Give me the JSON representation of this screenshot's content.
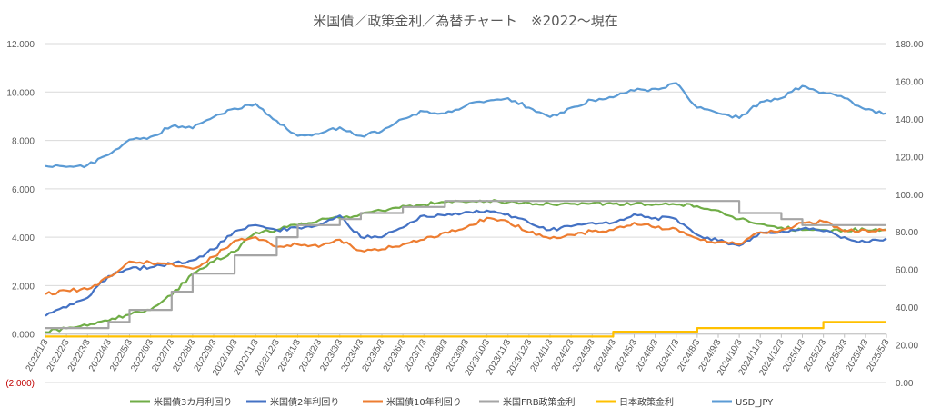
{
  "chart_data": {
    "type": "line",
    "title": "米国債／政策金利／為替チャート　※2022～現在",
    "left_axis": {
      "ylim": [
        -2,
        12
      ],
      "ticks": [
        -2,
        0,
        2,
        4,
        6,
        8,
        10,
        12
      ],
      "tick_labels": [
        "(2.000)",
        "0.000",
        "2.000",
        "4.000",
        "6.000",
        "8.000",
        "10.000",
        "12.000"
      ]
    },
    "right_axis": {
      "ylim": [
        0,
        180
      ],
      "ticks": [
        0,
        20,
        40,
        60,
        80,
        100,
        120,
        140,
        160,
        180
      ],
      "tick_labels": [
        "0.00",
        "20.00",
        "40.00",
        "60.00",
        "80.00",
        "100.00",
        "120.00",
        "140.00",
        "160.00",
        "180.00"
      ]
    },
    "grid": true,
    "legend": "bottom",
    "categories": [
      "2022/1/3",
      "2022/2/3",
      "2022/3/3",
      "2022/4/3",
      "2022/5/3",
      "2022/6/3",
      "2022/7/3",
      "2022/8/3",
      "2022/9/3",
      "2022/10/3",
      "2022/11/3",
      "2022/12/3",
      "2023/1/3",
      "2023/2/3",
      "2023/3/3",
      "2023/4/3",
      "2023/5/3",
      "2023/6/3",
      "2023/7/3",
      "2023/8/3",
      "2023/9/3",
      "2023/10/3",
      "2023/11/3",
      "2023/12/3",
      "2024/1/3",
      "2024/2/3",
      "2024/3/3",
      "2024/4/3",
      "2024/5/3",
      "2024/6/3",
      "2024/7/3",
      "2024/8/3",
      "2024/9/3",
      "2024/10/3",
      "2024/11/3",
      "2024/12/3",
      "2025/1/3",
      "2025/2/3",
      "2025/3/3",
      "2025/4/3",
      "2025/5/3"
    ],
    "series": [
      {
        "name": "米国債3カ月利回り",
        "axis": "left",
        "color": "#70ad47",
        "step": false,
        "values": [
          0.08,
          0.24,
          0.35,
          0.55,
          0.8,
          1.0,
          1.6,
          2.5,
          3.0,
          3.4,
          4.2,
          4.3,
          4.5,
          4.7,
          4.8,
          4.95,
          5.1,
          5.3,
          5.35,
          5.45,
          5.45,
          5.5,
          5.45,
          5.42,
          5.38,
          5.38,
          5.4,
          5.38,
          5.38,
          5.36,
          5.35,
          5.28,
          5.1,
          4.75,
          4.55,
          4.4,
          4.3,
          4.3,
          4.3,
          4.3,
          4.32
        ]
      },
      {
        "name": "米国債2年利回り",
        "axis": "left",
        "color": "#4472c4",
        "step": false,
        "values": [
          0.75,
          1.1,
          1.5,
          2.4,
          2.7,
          2.75,
          2.9,
          3.05,
          3.5,
          4.25,
          4.5,
          4.3,
          4.4,
          4.5,
          4.9,
          4.0,
          4.0,
          4.4,
          4.9,
          4.9,
          5.05,
          5.1,
          4.95,
          4.6,
          4.3,
          4.45,
          4.6,
          4.6,
          4.95,
          4.8,
          4.75,
          4.1,
          3.85,
          3.65,
          4.2,
          4.25,
          4.35,
          4.25,
          4.0,
          3.8,
          3.95
        ]
      },
      {
        "name": "米国債10年利回り",
        "axis": "left",
        "color": "#ed7d31",
        "step": false,
        "values": [
          1.65,
          1.8,
          1.85,
          2.35,
          3.0,
          2.95,
          2.9,
          2.7,
          3.2,
          3.85,
          4.0,
          3.6,
          3.7,
          3.6,
          3.9,
          3.45,
          3.5,
          3.7,
          3.9,
          4.2,
          4.4,
          4.8,
          4.65,
          4.2,
          3.95,
          4.1,
          4.25,
          4.3,
          4.6,
          4.4,
          4.35,
          3.95,
          3.8,
          3.7,
          4.2,
          4.3,
          4.6,
          4.65,
          4.25,
          4.3,
          4.3
        ]
      },
      {
        "name": "米国FRB政策金利",
        "axis": "left",
        "color": "#a5a5a5",
        "step": true,
        "values": [
          0.25,
          0.25,
          0.25,
          0.5,
          1.0,
          1.0,
          1.75,
          2.5,
          2.5,
          3.25,
          3.25,
          4.0,
          4.5,
          4.5,
          4.75,
          5.0,
          5.0,
          5.25,
          5.25,
          5.5,
          5.5,
          5.5,
          5.5,
          5.5,
          5.5,
          5.5,
          5.5,
          5.5,
          5.5,
          5.5,
          5.5,
          5.5,
          5.5,
          5.0,
          5.0,
          4.75,
          4.5,
          4.5,
          4.5,
          4.5,
          4.5
        ]
      },
      {
        "name": "日本政策金利",
        "axis": "left",
        "color": "#ffc000",
        "step": true,
        "values": [
          -0.1,
          -0.1,
          -0.1,
          -0.1,
          -0.1,
          -0.1,
          -0.1,
          -0.1,
          -0.1,
          -0.1,
          -0.1,
          -0.1,
          -0.1,
          -0.1,
          -0.1,
          -0.1,
          -0.1,
          -0.1,
          -0.1,
          -0.1,
          -0.1,
          -0.1,
          -0.1,
          -0.1,
          -0.1,
          -0.1,
          -0.1,
          0.1,
          0.1,
          0.1,
          0.1,
          0.25,
          0.25,
          0.25,
          0.25,
          0.25,
          0.25,
          0.5,
          0.5,
          0.5,
          0.5
        ]
      },
      {
        "name": "USD_JPY",
        "axis": "right",
        "color": "#5b9bd5",
        "step": false,
        "values": [
          115,
          114.5,
          115.5,
          121,
          129,
          130.5,
          136,
          135,
          141,
          145.5,
          148,
          139,
          131,
          132,
          135.5,
          131,
          133.5,
          140,
          144,
          143,
          147,
          149.5,
          151,
          146,
          141,
          146,
          150,
          151.5,
          155,
          156,
          159,
          146,
          143,
          140.5,
          149,
          151,
          157.5,
          154,
          151,
          145,
          143
        ]
      }
    ]
  }
}
